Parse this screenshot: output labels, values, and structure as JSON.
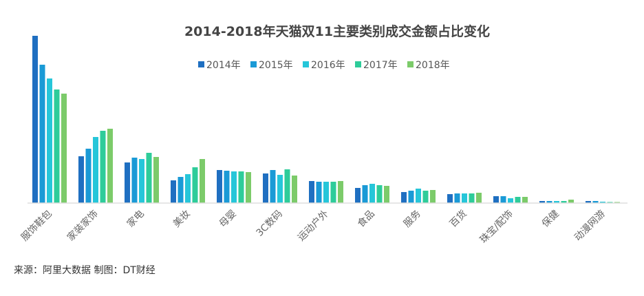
{
  "chart_data": {
    "type": "bar",
    "title": "2014-2018年天猫双11主要类别成交金额占比变化",
    "categories": [
      "服饰鞋包",
      "家装家饰",
      "家电",
      "美妆",
      "母婴",
      "3C数码",
      "运动户外",
      "食品",
      "服务",
      "百货",
      "珠宝/配饰",
      "保健",
      "动漫网游"
    ],
    "series": [
      {
        "name": "2014年",
        "color": "#1f6fc1",
        "values": [
          243,
          68,
          59,
          33,
          48,
          43,
          32,
          22,
          16,
          13,
          10,
          3,
          3
        ]
      },
      {
        "name": "2015年",
        "color": "#1a9ad6",
        "values": [
          201,
          79,
          66,
          38,
          47,
          48,
          31,
          26,
          18,
          14,
          10,
          3,
          3
        ]
      },
      {
        "name": "2016年",
        "color": "#26c6d9",
        "values": [
          181,
          96,
          64,
          42,
          46,
          41,
          31,
          28,
          21,
          14,
          7,
          3,
          2
        ]
      },
      {
        "name": "2017年",
        "color": "#2ecc9a",
        "values": [
          165,
          105,
          73,
          52,
          46,
          49,
          31,
          26,
          18,
          14,
          9,
          3,
          1.5
        ]
      },
      {
        "name": "2018年",
        "color": "#7ccb6a",
        "values": [
          159,
          108,
          67,
          64,
          45,
          40,
          32,
          25,
          19,
          15,
          9,
          5,
          1.5
        ]
      }
    ],
    "ylim": [
      0,
      250
    ],
    "y_axis_shown": false,
    "grid": false,
    "legend_position": "top-center"
  },
  "source": "来源：阿里大数据   制图：DT财经"
}
